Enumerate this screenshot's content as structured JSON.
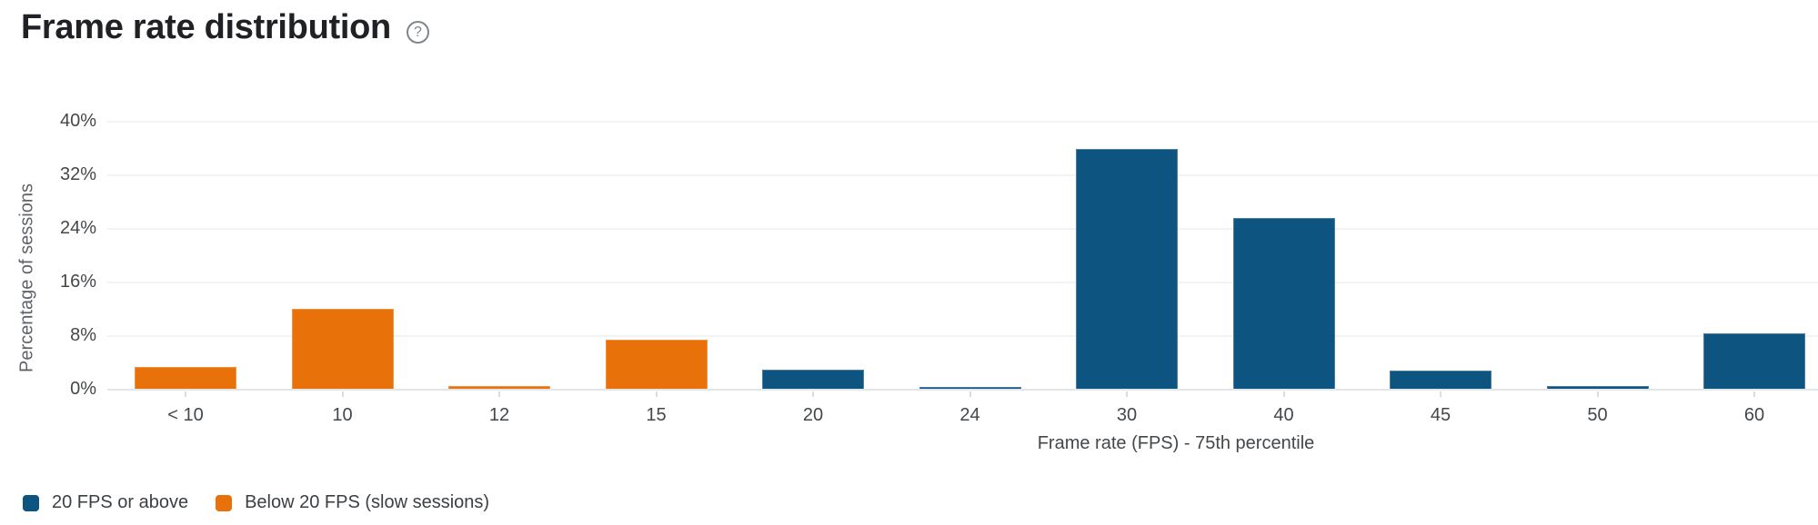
{
  "header": {
    "title": "Frame rate distribution",
    "help_glyph": "?"
  },
  "colors": {
    "background": "#ffffff",
    "title_text": "#202124",
    "axis_text": "#44474a",
    "muted_text": "#5f6368",
    "legend_text": "#3c4043",
    "help_icon": "#80868b",
    "gridline": "#f2f3f6",
    "axis_line": "#e3e6e8",
    "tick_mark": "#dadce0",
    "series_blue": "#0e5481",
    "series_orange": "#e8710a"
  },
  "chart_data": {
    "type": "bar",
    "title": "Frame rate distribution",
    "xlabel": "Frame rate (FPS) - 75th percentile",
    "ylabel": "Percentage of sessions",
    "ylim": [
      0,
      40
    ],
    "yticks": [
      0,
      8,
      16,
      24,
      32,
      40
    ],
    "ytick_suffix": "%",
    "grid": "horizontal",
    "legend_position": "bottom-left",
    "categories": [
      "< 10",
      "10",
      "12",
      "15",
      "20",
      "24",
      "30",
      "40",
      "45",
      "50",
      "60"
    ],
    "series": [
      {
        "name": "20 FPS or above",
        "color": "#0e5481",
        "values": [
          0,
          0,
          0,
          0,
          3.0,
          0.4,
          36.0,
          25.6,
          2.8,
          0.5,
          8.4
        ]
      },
      {
        "name": "Below 20 FPS (slow sessions)",
        "color": "#e8710a",
        "values": [
          3.4,
          12.1,
          0.6,
          7.4,
          0,
          0,
          0,
          0,
          0,
          0,
          0
        ]
      }
    ]
  }
}
